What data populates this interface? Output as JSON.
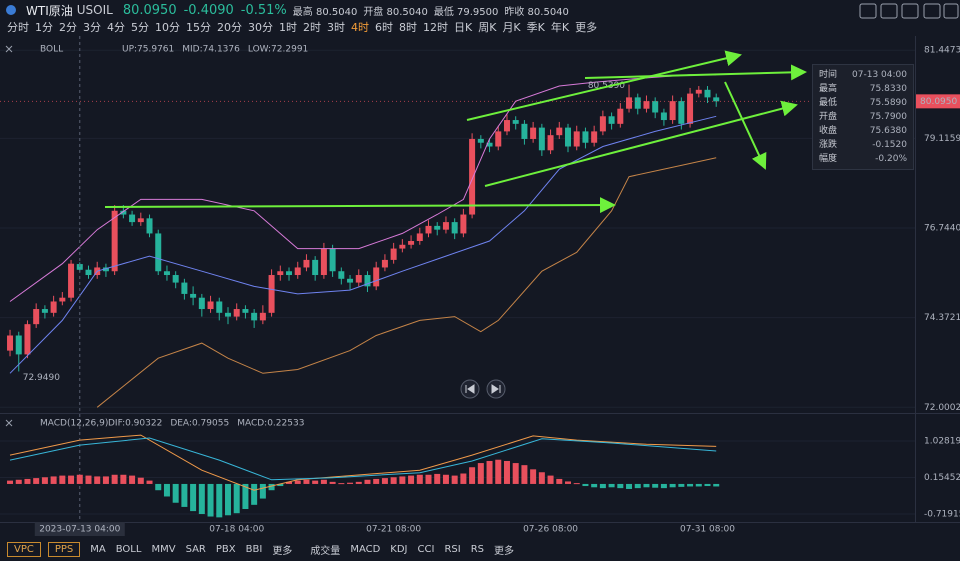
{
  "ui": {
    "symbol": "WTI原油",
    "code": "USOIL",
    "price": "80.0950",
    "change": "-0.4090",
    "change_pct": "-0.51%",
    "stats": [
      "最高 80.5040",
      "开盘 80.5040",
      "最低 79.9500",
      "昨收 80.5040"
    ],
    "timeframes": [
      "分时",
      "1分",
      "2分",
      "3分",
      "4分",
      "5分",
      "10分",
      "15分",
      "20分",
      "30分",
      "1时",
      "2时",
      "3时",
      "4时",
      "6时",
      "8时",
      "12时",
      "日K",
      "周K",
      "月K",
      "季K",
      "年K",
      "更多"
    ],
    "active_timeframe": "4时",
    "tooltip": [
      [
        "时间",
        "07-13 04:00"
      ],
      [
        "最高",
        "75.8330"
      ],
      [
        "最低",
        "75.5890"
      ],
      [
        "开盘",
        "75.7900"
      ],
      [
        "收盘",
        "75.6380"
      ],
      [
        "涨跌",
        "-0.1520"
      ],
      [
        "幅度",
        "-0.20%"
      ]
    ],
    "main_tabs": [
      "VPC",
      "PPS"
    ],
    "indicator_tabs": [
      "MA",
      "BOLL",
      "MMV",
      "SAR",
      "PBX",
      "BBI",
      "更多"
    ],
    "sub_tabs": [
      "成交量",
      "MACD",
      "KDJ",
      "CCI",
      "RSI",
      "RS",
      "更多"
    ]
  },
  "chart_data": [
    {
      "type": "candlestick",
      "title": "BOLL",
      "up_color": "#e9505d",
      "down_color": "#26b39c",
      "xlim": [
        -1.15,
        103.8
      ],
      "xticks": [
        {
          "value": 8,
          "label": "2023-07-13 04:00"
        },
        {
          "value": 26,
          "label": "07-18 04:00"
        },
        {
          "value": 44,
          "label": "07-21 08:00"
        },
        {
          "value": 62,
          "label": "07-26 08:00"
        },
        {
          "value": 80,
          "label": "07-31 08:00"
        }
      ],
      "ylim": [
        71.876,
        81.665
      ],
      "yticks": [
        81.4473,
        79.1159,
        {
          "value": 76.744,
          "label": "76.7440"
        },
        74.3721,
        72.0002
      ],
      "grid": true,
      "last_price": {
        "value": 80.095,
        "label": "80.0950"
      },
      "high_label": "80.5390",
      "low_label": "72.9490",
      "candles": [
        [
          73.5,
          74.05,
          73.35,
          73.9
        ],
        [
          73.9,
          74.0,
          72.949,
          73.4
        ],
        [
          73.4,
          74.3,
          73.3,
          74.2
        ],
        [
          74.2,
          74.75,
          74.1,
          74.6
        ],
        [
          74.6,
          74.7,
          74.35,
          74.5
        ],
        [
          74.5,
          74.95,
          74.4,
          74.8
        ],
        [
          74.8,
          75.05,
          74.7,
          74.9
        ],
        [
          74.9,
          75.9,
          74.8,
          75.8
        ],
        [
          75.79,
          75.833,
          75.589,
          75.638
        ],
        [
          75.64,
          75.75,
          75.4,
          75.5
        ],
        [
          75.5,
          75.85,
          75.4,
          75.7
        ],
        [
          75.7,
          75.8,
          75.45,
          75.6
        ],
        [
          75.6,
          77.35,
          75.5,
          77.2
        ],
        [
          77.2,
          77.35,
          77.0,
          77.1
        ],
        [
          77.1,
          77.2,
          76.8,
          76.9
        ],
        [
          76.9,
          77.15,
          76.8,
          77.0
        ],
        [
          77.0,
          77.1,
          76.5,
          76.6
        ],
        [
          76.6,
          76.7,
          75.5,
          75.6
        ],
        [
          75.6,
          75.75,
          75.35,
          75.5
        ],
        [
          75.5,
          75.6,
          75.15,
          75.3
        ],
        [
          75.3,
          75.4,
          74.85,
          75.0
        ],
        [
          75.0,
          75.2,
          74.7,
          74.9
        ],
        [
          74.9,
          75.0,
          74.4,
          74.6
        ],
        [
          74.6,
          74.95,
          74.5,
          74.8
        ],
        [
          74.8,
          74.9,
          74.3,
          74.5
        ],
        [
          74.5,
          74.65,
          74.2,
          74.4
        ],
        [
          74.4,
          74.75,
          74.3,
          74.6
        ],
        [
          74.6,
          74.7,
          74.35,
          74.5
        ],
        [
          74.5,
          74.6,
          74.1,
          74.3
        ],
        [
          74.3,
          74.7,
          74.2,
          74.5
        ],
        [
          74.5,
          75.65,
          74.4,
          75.5
        ],
        [
          75.5,
          75.75,
          75.35,
          75.6
        ],
        [
          75.6,
          75.7,
          75.35,
          75.5
        ],
        [
          75.5,
          75.85,
          75.4,
          75.7
        ],
        [
          75.7,
          76.05,
          75.6,
          75.9
        ],
        [
          75.9,
          76.0,
          75.35,
          75.5
        ],
        [
          75.5,
          76.35,
          75.4,
          76.2
        ],
        [
          76.2,
          76.3,
          75.45,
          75.6
        ],
        [
          75.6,
          75.7,
          75.25,
          75.4
        ],
        [
          75.4,
          75.5,
          75.1,
          75.3
        ],
        [
          75.3,
          75.65,
          75.2,
          75.5
        ],
        [
          75.5,
          75.6,
          75.05,
          75.2
        ],
        [
          75.2,
          75.85,
          75.1,
          75.7
        ],
        [
          75.7,
          76.05,
          75.6,
          75.9
        ],
        [
          75.9,
          76.35,
          75.8,
          76.2
        ],
        [
          76.2,
          76.45,
          76.1,
          76.3
        ],
        [
          76.3,
          76.55,
          76.2,
          76.4
        ],
        [
          76.4,
          76.75,
          76.3,
          76.6
        ],
        [
          76.6,
          76.95,
          76.5,
          76.8
        ],
        [
          76.8,
          76.9,
          76.55,
          76.7
        ],
        [
          76.7,
          77.05,
          76.6,
          76.9
        ],
        [
          76.9,
          77.0,
          76.45,
          76.6
        ],
        [
          76.6,
          77.25,
          76.5,
          77.1
        ],
        [
          77.1,
          79.25,
          77.0,
          79.1
        ],
        [
          79.1,
          79.2,
          78.85,
          79.0
        ],
        [
          79.0,
          79.1,
          78.75,
          78.9
        ],
        [
          78.9,
          79.45,
          78.8,
          79.3
        ],
        [
          79.3,
          79.75,
          79.2,
          79.6
        ],
        [
          79.6,
          79.7,
          79.35,
          79.5
        ],
        [
          79.5,
          79.6,
          78.95,
          79.1
        ],
        [
          79.1,
          79.55,
          79.0,
          79.4
        ],
        [
          79.4,
          79.5,
          78.65,
          78.8
        ],
        [
          78.8,
          79.35,
          78.7,
          79.2
        ],
        [
          79.2,
          79.55,
          79.1,
          79.4
        ],
        [
          79.4,
          79.5,
          78.75,
          78.9
        ],
        [
          78.9,
          79.45,
          78.8,
          79.3
        ],
        [
          79.3,
          79.4,
          78.85,
          79.0
        ],
        [
          79.0,
          79.45,
          78.9,
          79.3
        ],
        [
          79.3,
          79.85,
          79.2,
          79.7
        ],
        [
          79.7,
          79.8,
          79.35,
          79.5
        ],
        [
          79.5,
          80.05,
          79.4,
          79.9
        ],
        [
          79.9,
          80.539,
          79.8,
          80.2
        ],
        [
          80.2,
          80.3,
          79.75,
          79.9
        ],
        [
          79.9,
          80.25,
          79.8,
          80.1
        ],
        [
          80.1,
          80.2,
          79.65,
          79.8
        ],
        [
          79.8,
          79.9,
          79.45,
          79.6
        ],
        [
          79.6,
          80.25,
          79.5,
          80.1
        ],
        [
          80.1,
          80.2,
          79.35,
          79.5
        ],
        [
          79.5,
          80.45,
          79.4,
          80.3
        ],
        [
          80.3,
          80.5,
          80.2,
          80.4
        ],
        [
          80.4,
          80.5,
          80.05,
          80.2
        ],
        [
          80.2,
          80.3,
          79.95,
          80.095
        ]
      ],
      "series": [
        {
          "label": "UP:75.9761",
          "color": "#d77ad8",
          "x": [
            0,
            6,
            10,
            15,
            22,
            28,
            33,
            36,
            40,
            45,
            49,
            52,
            55,
            58,
            63,
            67,
            72,
            78,
            81
          ],
          "values": [
            74.8,
            75.8,
            76.7,
            77.5,
            77.5,
            77.2,
            76.2,
            76.2,
            76.2,
            76.6,
            77.1,
            77.5,
            79.1,
            80.1,
            80.5,
            80.6,
            80.7,
            80.8,
            80.8
          ]
        },
        {
          "label": "MID:74.1376",
          "color": "#6f83f0",
          "x": [
            0,
            6,
            10,
            16,
            22,
            28,
            33,
            39,
            45,
            50,
            55,
            59,
            63,
            68,
            74,
            81
          ],
          "values": [
            72.9,
            74.3,
            75.6,
            76.0,
            75.6,
            75.2,
            75.0,
            75.1,
            75.6,
            76.0,
            76.4,
            77.2,
            78.3,
            78.9,
            79.3,
            79.7
          ]
        },
        {
          "label": "LOW:72.2991",
          "color": "#c58448",
          "x": [
            10,
            17,
            22,
            25,
            29,
            33,
            39,
            42,
            47,
            51,
            54,
            56,
            61,
            65,
            69,
            71,
            77,
            81
          ],
          "values": [
            72.0,
            73.3,
            73.7,
            73.3,
            72.9,
            73.0,
            73.5,
            73.9,
            74.3,
            74.4,
            74.0,
            74.3,
            75.6,
            76.1,
            77.2,
            78.1,
            78.4,
            78.6
          ]
        }
      ]
    },
    {
      "type": "macd",
      "title": "MACD(12,26,9)",
      "up_color": "#e9505d",
      "down_color": "#26b39c",
      "xlim": [
        -1.15,
        103.8
      ],
      "ylim": [
        -0.911,
        1.579
      ],
      "yticks": [
        1.02819,
        0.15452,
        -0.71915
      ],
      "label": "MACD:0.22533",
      "label_color": "#b57ad8",
      "values": [
        0.08,
        0.1,
        0.12,
        0.14,
        0.16,
        0.18,
        0.2,
        0.2,
        0.22,
        0.2,
        0.18,
        0.18,
        0.22,
        0.22,
        0.2,
        0.15,
        0.08,
        -0.15,
        -0.3,
        -0.45,
        -0.55,
        -0.65,
        -0.72,
        -0.78,
        -0.8,
        -0.75,
        -0.7,
        -0.6,
        -0.5,
        -0.35,
        -0.15,
        -0.05,
        0.05,
        0.08,
        0.1,
        0.08,
        0.1,
        0.05,
        0.02,
        0.03,
        0.05,
        0.1,
        0.12,
        0.14,
        0.16,
        0.18,
        0.2,
        0.22,
        0.22,
        0.24,
        0.22,
        0.2,
        0.25,
        0.4,
        0.5,
        0.55,
        0.58,
        0.55,
        0.5,
        0.45,
        0.35,
        0.28,
        0.2,
        0.12,
        0.06,
        0.02,
        -0.05,
        -0.08,
        -0.1,
        -0.08,
        -0.1,
        -0.12,
        -0.1,
        -0.08,
        -0.09,
        -0.1,
        -0.08,
        -0.07,
        -0.06,
        -0.06,
        -0.05,
        -0.06
      ],
      "series": [
        {
          "label": "DIF:0.90322",
          "color": "#f09a4a",
          "x": [
            0,
            8,
            15,
            22,
            28,
            33,
            39,
            47,
            53,
            60,
            65,
            73,
            81
          ],
          "values": [
            0.69,
            1.05,
            1.17,
            0.33,
            -0.15,
            0.1,
            0.2,
            0.33,
            0.69,
            1.15,
            1.05,
            0.95,
            0.9
          ]
        },
        {
          "label": "DEA:0.79055",
          "color": "#38b6d8",
          "x": [
            0,
            8,
            16,
            24,
            30,
            37,
            47,
            53,
            61,
            69,
            81
          ],
          "values": [
            0.57,
            0.93,
            1.1,
            0.57,
            0.1,
            0.15,
            0.27,
            0.55,
            1.08,
            0.98,
            0.79
          ]
        }
      ]
    }
  ]
}
